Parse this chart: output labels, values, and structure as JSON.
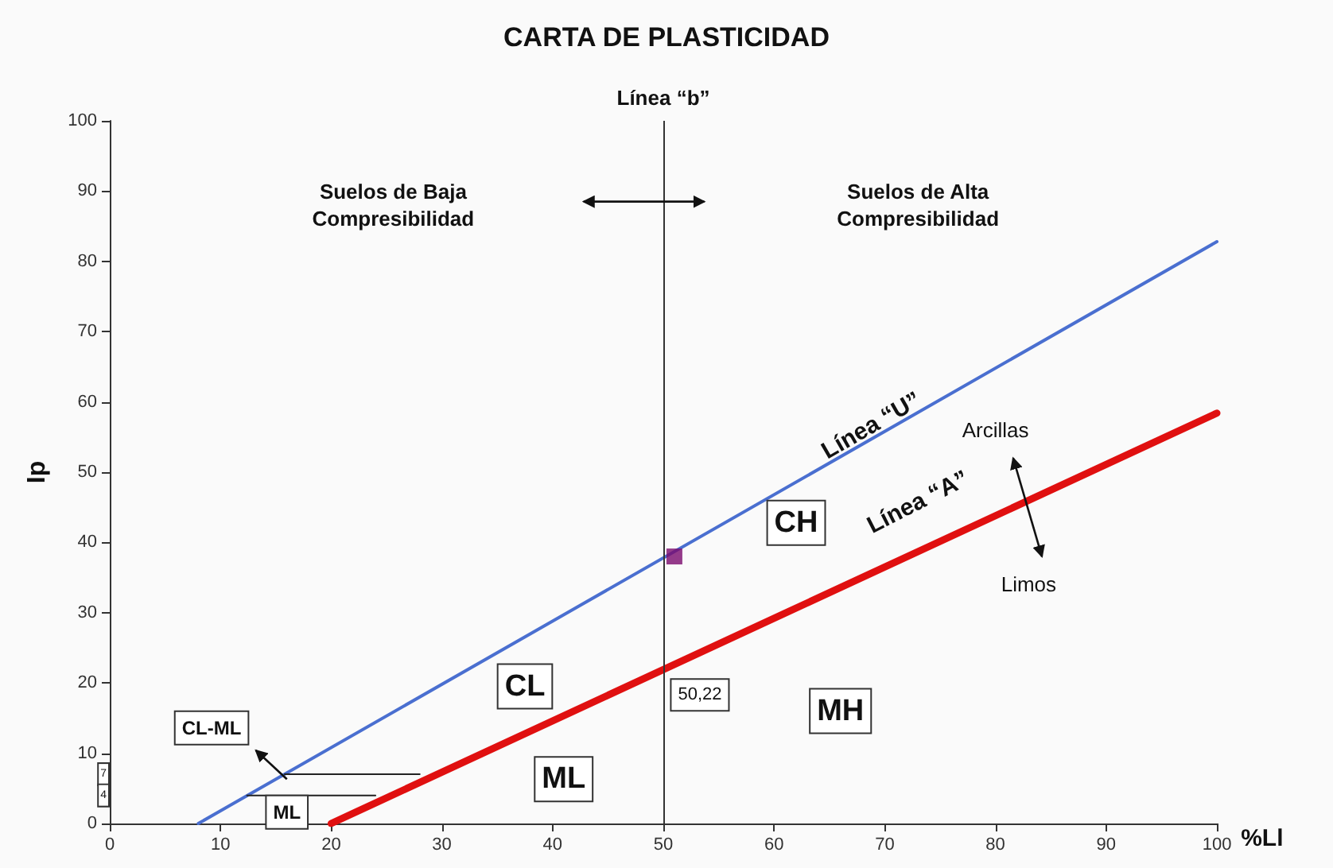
{
  "chart_data": {
    "type": "line",
    "title": "CARTA DE PLASTICIDAD",
    "xlabel": "%Ll",
    "ylabel": "Ip",
    "xlim": [
      0,
      100
    ],
    "xticks": [
      0,
      10,
      20,
      30,
      40,
      50,
      60,
      70,
      80,
      90,
      100
    ],
    "ylim": [
      0,
      100
    ],
    "yticks": [
      0,
      10,
      20,
      30,
      40,
      50,
      60,
      70,
      80,
      90,
      100
    ],
    "grid": false,
    "series": [
      {
        "x": [
          8,
          100
        ],
        "values": [
          0,
          82.8
        ],
        "color": "#4a6fd0",
        "marker": "none"
      },
      {
        "x": [
          20,
          100
        ],
        "values": [
          0,
          58.4
        ],
        "color": "#e01010",
        "marker": "none"
      },
      {
        "x": [
          15.8,
          28
        ],
        "values": [
          7,
          7
        ],
        "color": "#222222",
        "marker": "none"
      },
      {
        "x": [
          12.4,
          24
        ],
        "values": [
          4,
          4
        ],
        "color": "#222222",
        "marker": "none"
      },
      {
        "type": "scatter",
        "x": [
          51
        ],
        "values": [
          38
        ],
        "color": "#7b0a6e",
        "marker": "square"
      }
    ],
    "ref_lines": [
      {
        "axis": "x",
        "value": 50,
        "label": "Línea “b”",
        "color": "#333333"
      }
    ],
    "annotations": [
      "Línea “U”",
      "Línea “A”",
      "Suelos de Baja\nCompresibilidad",
      "Suelos de Alta\nCompresibilidad",
      "Arcillas",
      "Limos",
      {
        "text": "CH",
        "x": 62,
        "y": 42.8
      },
      {
        "text": "CL",
        "x": 37.5,
        "y": 19.5
      },
      {
        "text": "MH",
        "x": 66,
        "y": 16
      },
      {
        "text": "ML",
        "x": 41,
        "y": 6.3
      },
      "CL-ML",
      {
        "text": "ML",
        "x": 16,
        "y": 1.6
      },
      {
        "text": "50,22",
        "x": 53.3,
        "y": 18.3
      },
      "7",
      "4"
    ]
  }
}
